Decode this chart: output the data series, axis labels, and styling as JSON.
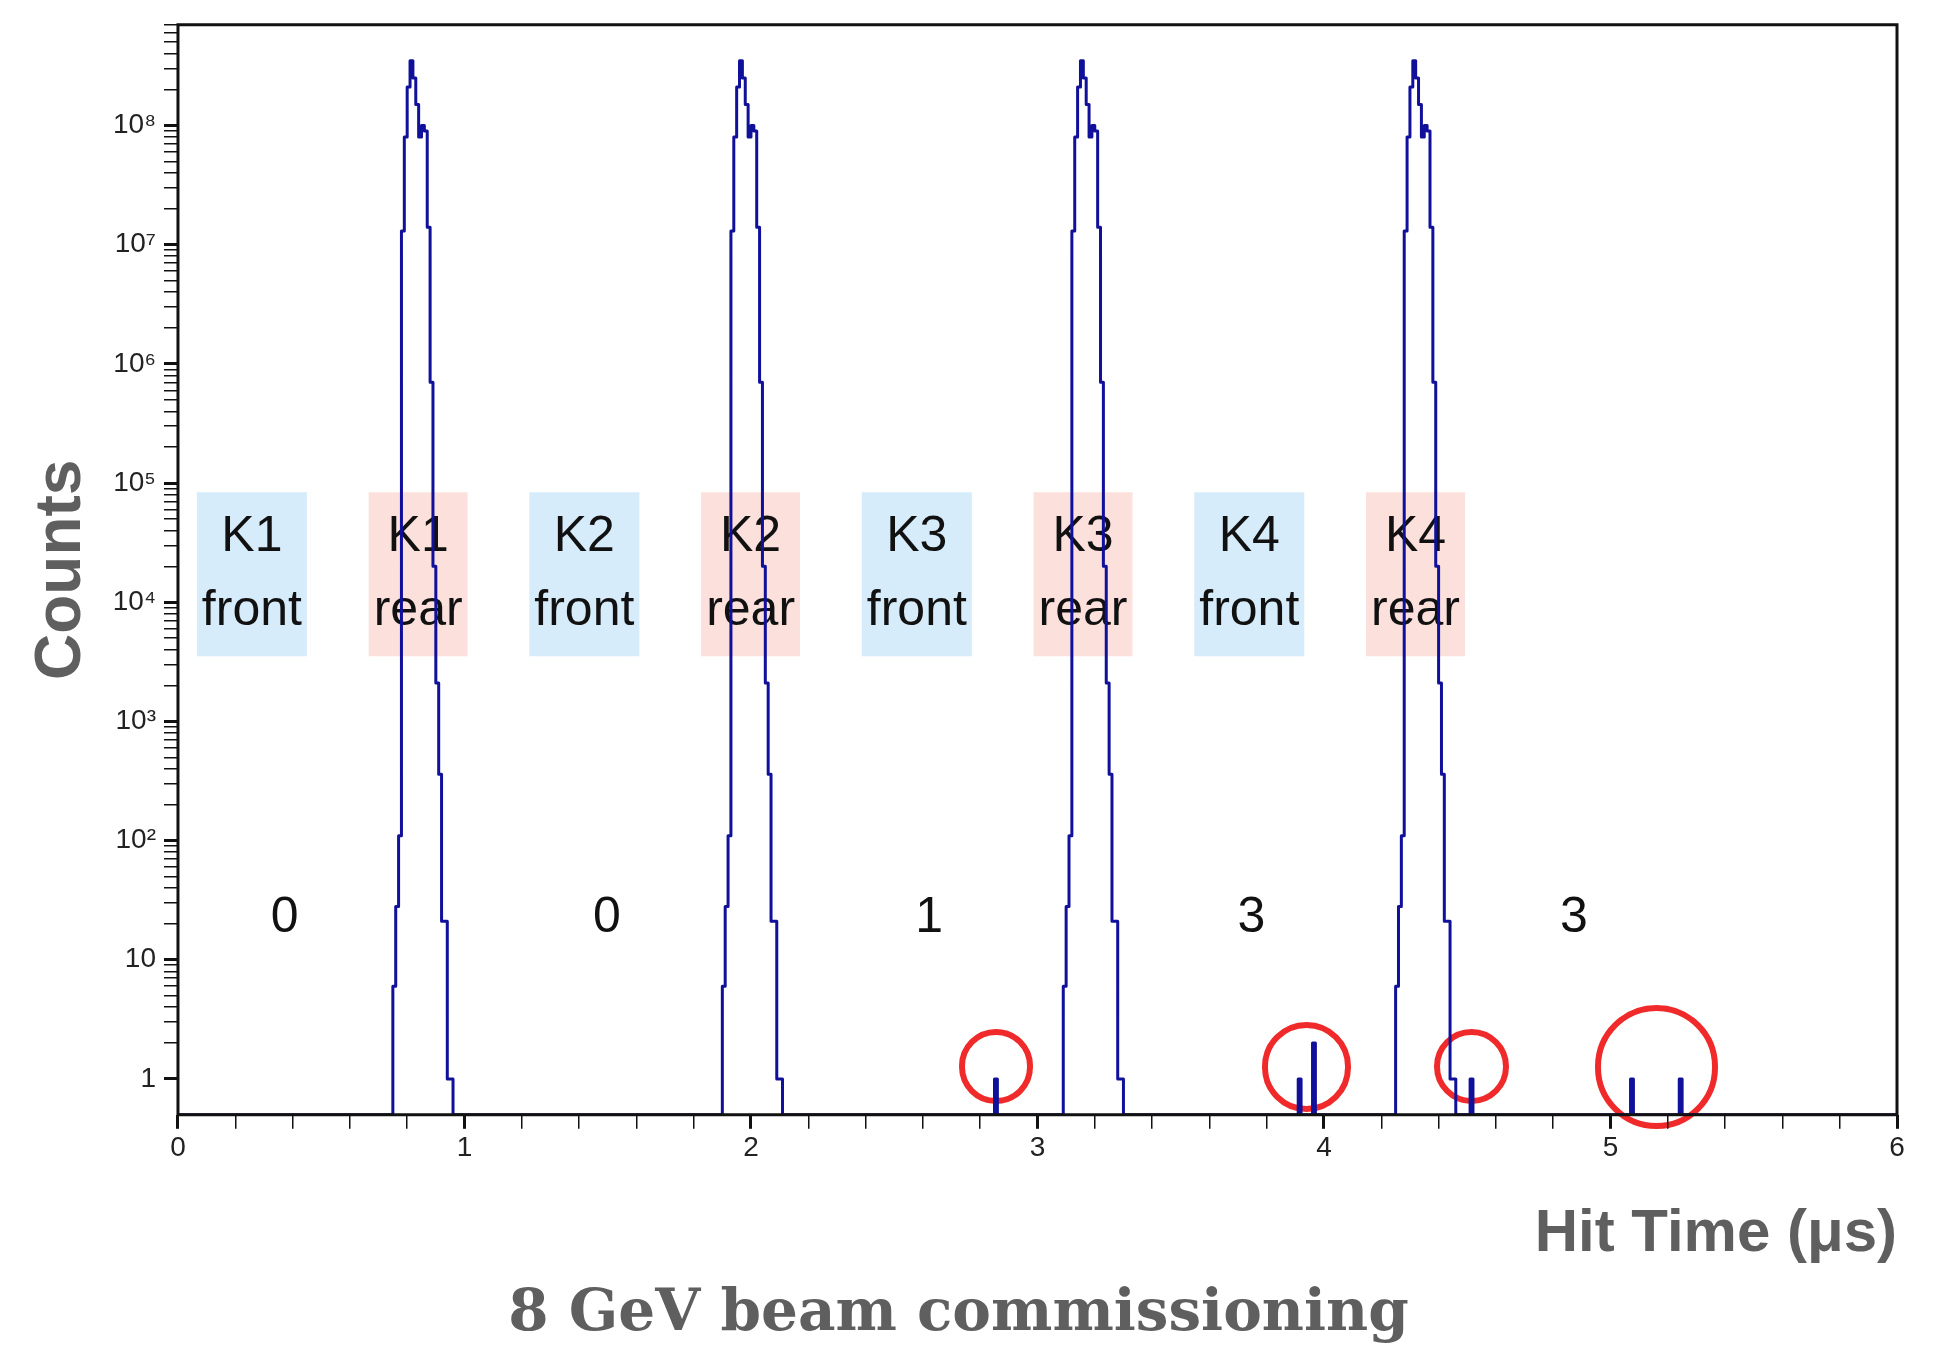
{
  "chart_data": {
    "type": "histogram",
    "title": "8 GeV beam commissioning",
    "xlabel": "Hit Time (μs)",
    "ylabel": "Counts",
    "color": "#10109a",
    "log": "y",
    "xlim": [
      0,
      6
    ],
    "ylim": [
      0.5,
      700000000
    ],
    "xticks": [
      0,
      {
        "value": 0.2,
        "label": null
      },
      {
        "value": 0.4,
        "label": null
      },
      {
        "value": 0.6,
        "label": null
      },
      {
        "value": 0.8,
        "label": null
      },
      1,
      {
        "value": 1.2,
        "label": null
      },
      {
        "value": 1.4,
        "label": null
      },
      {
        "value": 1.6,
        "label": null
      },
      {
        "value": 1.8,
        "label": null
      },
      2,
      {
        "value": 2.2,
        "label": null
      },
      {
        "value": 2.4,
        "label": null
      },
      {
        "value": 2.6,
        "label": null
      },
      {
        "value": 2.8,
        "label": null
      },
      3,
      {
        "value": 3.2,
        "label": null
      },
      {
        "value": 3.4,
        "label": null
      },
      {
        "value": 3.6,
        "label": null
      },
      {
        "value": 3.8,
        "label": null
      },
      4,
      {
        "value": 4.2,
        "label": null
      },
      {
        "value": 4.4,
        "label": null
      },
      {
        "value": 4.6,
        "label": null
      },
      {
        "value": 4.8,
        "label": null
      },
      5,
      {
        "value": 5.2,
        "label": null
      },
      {
        "value": 5.4,
        "label": null
      },
      {
        "value": 5.6,
        "label": null
      },
      {
        "value": 5.8,
        "label": null
      },
      6
    ],
    "yticks": [
      1,
      {
        "value": 2,
        "label": null
      },
      {
        "value": 3,
        "label": null
      },
      {
        "value": 4,
        "label": null
      },
      {
        "value": 5,
        "label": null
      },
      {
        "value": 6,
        "label": null
      },
      {
        "value": 7,
        "label": null
      },
      {
        "value": 8,
        "label": null
      },
      {
        "value": 9,
        "label": null
      },
      10,
      {
        "value": 20,
        "label": null
      },
      {
        "value": 30,
        "label": null
      },
      {
        "value": 40,
        "label": null
      },
      {
        "value": 50,
        "label": null
      },
      {
        "value": 60,
        "label": null
      },
      {
        "value": 70,
        "label": null
      },
      {
        "value": 80,
        "label": null
      },
      {
        "value": 90,
        "label": null
      },
      {
        "value": 100,
        "label": "10²"
      },
      {
        "value": 200,
        "label": null
      },
      {
        "value": 300,
        "label": null
      },
      {
        "value": 400,
        "label": null
      },
      {
        "value": 500,
        "label": null
      },
      {
        "value": 600,
        "label": null
      },
      {
        "value": 700,
        "label": null
      },
      {
        "value": 800,
        "label": null
      },
      {
        "value": 900,
        "label": null
      },
      {
        "value": 1000,
        "label": "10³"
      },
      {
        "value": 2000,
        "label": null
      },
      {
        "value": 3000,
        "label": null
      },
      {
        "value": 4000,
        "label": null
      },
      {
        "value": 5000,
        "label": null
      },
      {
        "value": 6000,
        "label": null
      },
      {
        "value": 7000,
        "label": null
      },
      {
        "value": 8000,
        "label": null
      },
      {
        "value": 9000,
        "label": null
      },
      {
        "value": 10000,
        "label": "10⁴"
      },
      {
        "value": 20000,
        "label": null
      },
      {
        "value": 30000,
        "label": null
      },
      {
        "value": 40000,
        "label": null
      },
      {
        "value": 50000,
        "label": null
      },
      {
        "value": 60000,
        "label": null
      },
      {
        "value": 70000,
        "label": null
      },
      {
        "value": 80000,
        "label": null
      },
      {
        "value": 90000,
        "label": null
      },
      {
        "value": 100000,
        "label": "10⁵"
      },
      {
        "value": 200000,
        "label": null
      },
      {
        "value": 300000,
        "label": null
      },
      {
        "value": 400000,
        "label": null
      },
      {
        "value": 500000,
        "label": null
      },
      {
        "value": 600000,
        "label": null
      },
      {
        "value": 700000,
        "label": null
      },
      {
        "value": 800000,
        "label": null
      },
      {
        "value": 900000,
        "label": null
      },
      {
        "value": 1000000,
        "label": "10⁶"
      },
      {
        "value": 2000000,
        "label": null
      },
      {
        "value": 3000000,
        "label": null
      },
      {
        "value": 4000000,
        "label": null
      },
      {
        "value": 5000000,
        "label": null
      },
      {
        "value": 6000000,
        "label": null
      },
      {
        "value": 7000000,
        "label": null
      },
      {
        "value": 8000000,
        "label": null
      },
      {
        "value": 9000000,
        "label": null
      },
      {
        "value": 10000000,
        "label": "10⁷"
      },
      {
        "value": 20000000,
        "label": null
      },
      {
        "value": 30000000,
        "label": null
      },
      {
        "value": 40000000,
        "label": null
      },
      {
        "value": 50000000,
        "label": null
      },
      {
        "value": 60000000,
        "label": null
      },
      {
        "value": 70000000,
        "label": null
      },
      {
        "value": 80000000,
        "label": null
      },
      {
        "value": 90000000,
        "label": null
      },
      {
        "value": 100000000,
        "label": "10⁸"
      },
      {
        "value": 200000000,
        "label": null
      },
      {
        "value": 300000000,
        "label": null
      },
      {
        "value": 400000000,
        "label": null
      },
      {
        "value": 500000000,
        "label": null
      },
      {
        "value": 600000000,
        "label": null
      },
      {
        "value": 700000000,
        "label": null
      }
    ],
    "bins": [
      0,
      0.75,
      0.76,
      0.77,
      0.78,
      0.79,
      0.8,
      0.81,
      0.82,
      0.83,
      0.84,
      0.85,
      0.86,
      0.87,
      0.88,
      0.89,
      0.9,
      0.91,
      0.92,
      0.93,
      0.94,
      0.95,
      0.96,
      1.9,
      1.91,
      1.92,
      1.93,
      1.94,
      1.95,
      1.96,
      1.97,
      1.98,
      1.99,
      2,
      2.01,
      2.02,
      2.03,
      2.04,
      2.05,
      2.06,
      2.07,
      2.08,
      2.09,
      2.1,
      2.11,
      2.85,
      2.86,
      3.09,
      3.1,
      3.11,
      3.12,
      3.13,
      3.14,
      3.15,
      3.16,
      3.17,
      3.18,
      3.19,
      3.2,
      3.21,
      3.22,
      3.23,
      3.24,
      3.25,
      3.26,
      3.27,
      3.28,
      3.29,
      3.3,
      3.91,
      3.92,
      3.96,
      3.97,
      4.25,
      4.26,
      4.27,
      4.28,
      4.29,
      4.3,
      4.31,
      4.32,
      4.33,
      4.34,
      4.35,
      4.36,
      4.37,
      4.38,
      4.39,
      4.4,
      4.41,
      4.42,
      4.43,
      4.44,
      4.45,
      4.46,
      4.51,
      4.52,
      5.07,
      5.08,
      5.24,
      5.25,
      6
    ],
    "values": [
      null,
      6,
      28,
      110,
      13000000,
      80000000,
      210000000,
      350000000,
      250000000,
      150000000,
      80000000,
      100000000,
      90000000,
      14000000,
      700000,
      20000,
      2100,
      360,
      21,
      21,
      1,
      1,
      null,
      6,
      28,
      110,
      13000000,
      80000000,
      210000000,
      350000000,
      250000000,
      150000000,
      80000000,
      100000000,
      90000000,
      14000000,
      700000,
      20000,
      2100,
      360,
      21,
      21,
      1,
      1,
      null,
      1,
      null,
      6,
      28,
      110,
      13000000,
      80000000,
      210000000,
      350000000,
      250000000,
      150000000,
      80000000,
      100000000,
      90000000,
      14000000,
      700000,
      20000,
      2100,
      360,
      21,
      21,
      1,
      1,
      null,
      1,
      null,
      2,
      null,
      6,
      28,
      110,
      13000000,
      80000000,
      210000000,
      350000000,
      250000000,
      150000000,
      80000000,
      100000000,
      90000000,
      14000000,
      700000,
      20000,
      2100,
      360,
      21,
      21,
      1,
      1,
      null,
      1,
      null,
      1,
      null,
      1,
      null
    ],
    "annotations": [
      "K1 front",
      "K1 rear",
      "K2 front",
      "K2 rear",
      "K3 front",
      "K3 rear",
      "K4 front",
      "K4 rear",
      "0",
      "0",
      "1",
      "3",
      "3"
    ]
  }
}
